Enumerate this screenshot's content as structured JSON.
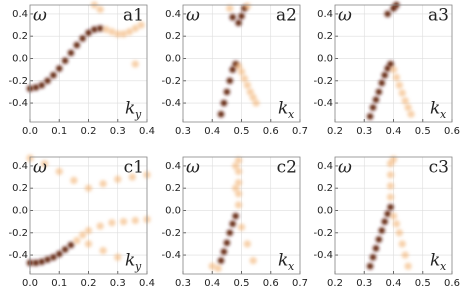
{
  "chart_data": [
    {
      "type": "scatter",
      "panel_label": "a1",
      "ylabel": "ω",
      "xlabel": "k",
      "xlabel_sub": "y",
      "grid": true,
      "xlim": [
        0.0,
        0.4
      ],
      "xticks": [
        {
          "value": 0.0,
          "label": "0.0"
        },
        0.1,
        0.2,
        0.3,
        0.4
      ],
      "ylim": [
        -0.57,
        0.48
      ],
      "yticks": [
        -0.4,
        -0.2,
        {
          "value": 0.0,
          "label": "0.0"
        },
        0.2,
        0.4
      ],
      "series": [
        {
          "color": "#5a1606",
          "x": [
            0.0,
            0.02,
            0.04,
            0.06,
            0.08,
            0.1,
            0.12,
            0.14,
            0.16,
            0.18,
            0.2,
            0.22,
            0.24
          ],
          "values": [
            -0.27,
            -0.26,
            -0.24,
            -0.2,
            -0.15,
            -0.09,
            -0.02,
            0.05,
            0.12,
            0.18,
            0.23,
            0.26,
            0.27
          ]
        },
        {
          "color": "#f2b070",
          "x": [
            0.26,
            0.28,
            0.3,
            0.32,
            0.34,
            0.36,
            0.38,
            0.22,
            0.24,
            0.36
          ],
          "values": [
            0.26,
            0.24,
            0.22,
            0.22,
            0.24,
            0.27,
            0.3,
            0.48,
            0.44,
            -0.05
          ]
        }
      ]
    },
    {
      "type": "scatter",
      "panel_label": "a2",
      "ylabel": "ω",
      "xlabel": "k",
      "xlabel_sub": "x",
      "grid": true,
      "xlim": [
        0.3,
        0.7
      ],
      "xticks": [
        0.3,
        0.4,
        0.5,
        0.6,
        0.7
      ],
      "ylim": [
        -0.57,
        0.48
      ],
      "yticks": [
        -0.4,
        -0.2,
        {
          "value": 0.0,
          "label": "0.0"
        },
        0.2,
        0.4
      ],
      "series": [
        {
          "color": "#5a1606",
          "x": [
            0.43,
            0.44,
            0.45,
            0.46,
            0.47,
            0.48,
            0.47,
            0.49,
            0.5,
            0.51
          ],
          "values": [
            -0.5,
            -0.4,
            -0.3,
            -0.2,
            -0.1,
            -0.05,
            0.37,
            0.32,
            0.38,
            0.45
          ]
        },
        {
          "color": "#f2b070",
          "x": [
            0.49,
            0.5,
            0.51,
            0.52,
            0.53,
            0.54,
            0.55,
            0.46,
            0.52
          ],
          "values": [
            -0.07,
            -0.12,
            -0.18,
            -0.24,
            -0.3,
            -0.35,
            -0.4,
            0.45,
            0.47
          ]
        }
      ]
    },
    {
      "type": "scatter",
      "panel_label": "a3",
      "ylabel": "ω",
      "xlabel": "k",
      "xlabel_sub": "x",
      "grid": true,
      "xlim": [
        0.2,
        0.6
      ],
      "xticks": [
        0.2,
        0.3,
        0.4,
        0.5,
        0.6
      ],
      "ylim": [
        -0.57,
        0.48
      ],
      "yticks": [
        -0.4,
        -0.2,
        {
          "value": 0.0,
          "label": "0.0"
        },
        0.2,
        0.4
      ],
      "series": [
        {
          "color": "#5a1606",
          "x": [
            0.32,
            0.33,
            0.34,
            0.35,
            0.36,
            0.37,
            0.38,
            0.39,
            0.38,
            0.4,
            0.41
          ],
          "values": [
            -0.52,
            -0.44,
            -0.37,
            -0.3,
            -0.22,
            -0.15,
            -0.09,
            -0.05,
            0.4,
            0.45,
            0.48
          ]
        },
        {
          "color": "#f2b070",
          "x": [
            0.4,
            0.41,
            0.42,
            0.43,
            0.44,
            0.45,
            0.46
          ],
          "values": [
            -0.1,
            -0.17,
            -0.24,
            -0.31,
            -0.38,
            -0.44,
            -0.5
          ]
        }
      ]
    },
    {
      "type": "scatter",
      "panel_label": "c1",
      "ylabel": "ω",
      "xlabel": "k",
      "xlabel_sub": "y",
      "grid": true,
      "xlim": [
        0.0,
        0.4
      ],
      "xticks": [
        {
          "value": 0.0,
          "label": "0.0"
        },
        0.1,
        0.2,
        0.3,
        0.4
      ],
      "ylim": [
        -0.57,
        0.48
      ],
      "yticks": [
        -0.4,
        -0.2,
        {
          "value": 0.0,
          "label": "0.0"
        },
        0.2,
        0.4
      ],
      "series": [
        {
          "color": "#5a1606",
          "x": [
            0.0,
            0.02,
            0.04,
            0.06,
            0.08,
            0.1,
            0.12,
            0.14
          ],
          "values": [
            -0.47,
            -0.47,
            -0.46,
            -0.44,
            -0.42,
            -0.39,
            -0.35,
            -0.31
          ]
        },
        {
          "color": "#f2b070",
          "x": [
            0.16,
            0.18,
            0.2,
            0.24,
            0.28,
            0.32,
            0.36,
            0.4,
            0.0,
            0.05,
            0.1,
            0.15,
            0.2,
            0.25,
            0.3,
            0.35,
            0.4,
            0.2,
            0.25,
            0.3
          ],
          "values": [
            -0.27,
            -0.22,
            -0.18,
            -0.14,
            -0.11,
            -0.1,
            -0.09,
            -0.08,
            0.47,
            0.42,
            0.35,
            0.27,
            0.2,
            0.24,
            0.28,
            0.3,
            0.32,
            -0.3,
            -0.36,
            -0.42
          ]
        }
      ]
    },
    {
      "type": "scatter",
      "panel_label": "c2",
      "ylabel": "ω",
      "xlabel": "k",
      "xlabel_sub": "x",
      "grid": true,
      "xlim": [
        0.3,
        0.7
      ],
      "xticks": [
        0.3,
        0.4,
        0.5,
        0.6,
        0.7
      ],
      "ylim": [
        -0.57,
        0.48
      ],
      "yticks": [
        -0.4,
        -0.2,
        {
          "value": 0.0,
          "label": "0.0"
        },
        0.2,
        0.4
      ],
      "series": [
        {
          "color": "#5a1606",
          "x": [
            0.43,
            0.44,
            0.45,
            0.46,
            0.47,
            0.48
          ],
          "values": [
            -0.45,
            -0.37,
            -0.29,
            -0.2,
            -0.12,
            -0.05
          ]
        },
        {
          "color": "#f2b070",
          "x": [
            0.49,
            0.49,
            0.49,
            0.49,
            0.49,
            0.48,
            0.48,
            0.5,
            0.52,
            0.54,
            0.42,
            0.4
          ],
          "values": [
            0.05,
            0.15,
            0.25,
            0.35,
            0.45,
            0.4,
            0.2,
            -0.15,
            -0.3,
            -0.45,
            -0.52,
            -0.5
          ]
        }
      ]
    },
    {
      "type": "scatter",
      "panel_label": "c3",
      "ylabel": "ω",
      "xlabel": "k",
      "xlabel_sub": "x",
      "grid": true,
      "xlim": [
        0.2,
        0.6
      ],
      "xticks": [
        0.2,
        0.3,
        0.4,
        0.5,
        0.6
      ],
      "ylim": [
        -0.57,
        0.48
      ],
      "yticks": [
        -0.4,
        -0.2,
        {
          "value": 0.0,
          "label": "0.0"
        },
        0.2,
        0.4
      ],
      "series": [
        {
          "color": "#5a1606",
          "x": [
            0.32,
            0.33,
            0.34,
            0.35,
            0.36,
            0.37,
            0.38,
            0.39
          ],
          "values": [
            -0.5,
            -0.42,
            -0.34,
            -0.26,
            -0.18,
            -0.1,
            -0.03,
            0.03
          ]
        },
        {
          "color": "#f2b070",
          "x": [
            0.39,
            0.39,
            0.39,
            0.39,
            0.4,
            0.4,
            0.41,
            0.42,
            0.43,
            0.44,
            0.45
          ],
          "values": [
            0.12,
            0.22,
            0.32,
            0.42,
            -0.05,
            0.46,
            -0.12,
            -0.2,
            -0.3,
            -0.4,
            -0.5
          ]
        }
      ]
    }
  ]
}
